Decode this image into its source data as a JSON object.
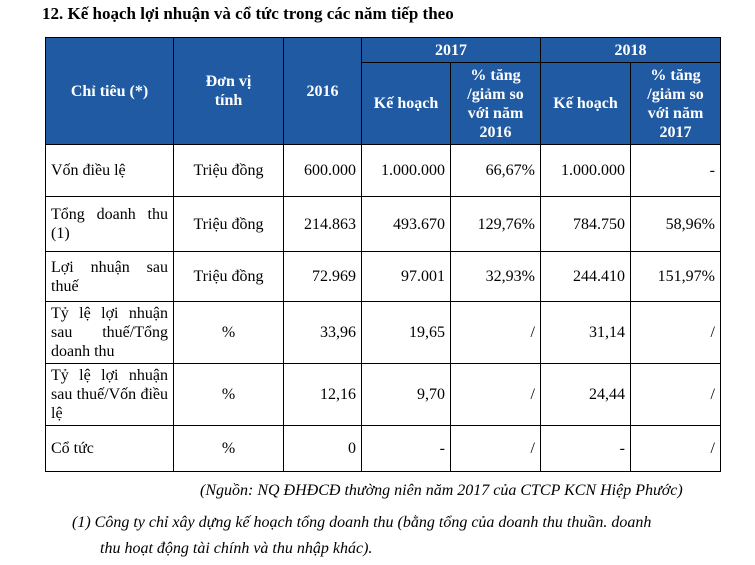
{
  "title": "12. Kế hoạch lợi nhuận và cổ tức trong các năm tiếp theo",
  "table": {
    "headers": {
      "indicator": "Chỉ tiêu (*)",
      "unit": "Đơn vị tính",
      "y2016": "2016",
      "y2017": "2017",
      "y2018": "2018",
      "plan2017": "Kế hoạch",
      "pct2017": "% tăng /giảm so với năm 2016",
      "plan2018": "Kế hoạch",
      "pct2018": "% tăng /giảm so với năm 2017"
    },
    "rows": [
      {
        "label": "Vốn điều lệ",
        "unit": "Triệu đồng",
        "v2016": "600.000",
        "plan2017": "1.000.000",
        "pct2017": "66,67%",
        "plan2018": "1.000.000",
        "pct2018": "-"
      },
      {
        "label": "Tổng doanh thu (1)",
        "unit": "Triệu đồng",
        "v2016": "214.863",
        "plan2017": "493.670",
        "pct2017": "129,76%",
        "plan2018": "784.750",
        "pct2018": "58,96%"
      },
      {
        "label": "Lợi nhuận sau thuế",
        "unit": "Triệu đồng",
        "v2016": "72.969",
        "plan2017": "97.001",
        "pct2017": "32,93%",
        "plan2018": "244.410",
        "pct2018": "151,97%"
      },
      {
        "label": "Tỷ lệ lợi nhuận sau thuế/Tổng doanh thu",
        "unit": "%",
        "v2016": "33,96",
        "plan2017": "19,65",
        "pct2017": "/",
        "plan2018": "31,14",
        "pct2018": "/"
      },
      {
        "label": "Tỷ lệ lợi nhuận sau thuế/Vốn điều lệ",
        "unit": "%",
        "v2016": "12,16",
        "plan2017": "9,70",
        "pct2017": "/",
        "plan2018": "24,44",
        "pct2018": "/"
      },
      {
        "label": "Cổ tức",
        "unit": "%",
        "v2016": "0",
        "plan2017": "-",
        "pct2017": "/",
        "plan2018": "-",
        "pct2018": "/"
      }
    ]
  },
  "source": "(Nguồn: NQ ĐHĐCĐ thường niên năm 2017 của CTCP KCN Hiệp Phước)",
  "note": {
    "line1": "(1) Công ty chỉ xây dựng kế hoạch tổng doanh thu (bằng tổng của doanh thu thuần. doanh",
    "line2": "thu hoạt động tài chính và thu nhập khác)."
  },
  "colors": {
    "header_bg": "#1f5aa3",
    "header_text": "#ffffff"
  }
}
